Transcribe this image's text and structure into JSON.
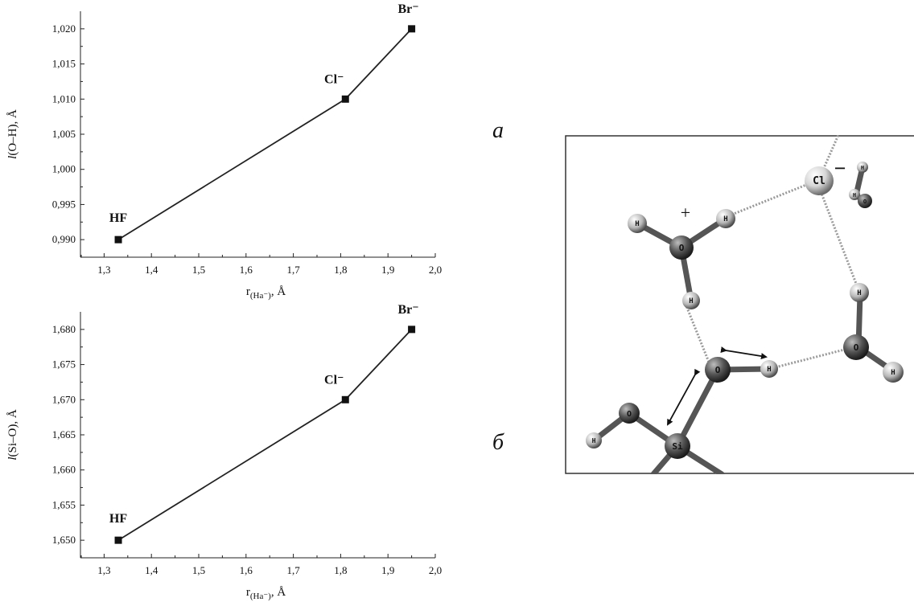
{
  "panel_labels": {
    "a": "а",
    "b": "б"
  },
  "chart_data": [
    {
      "type": "line",
      "x": [
        1.33,
        1.81,
        1.95
      ],
      "series": [
        {
          "values": [
            0.99,
            1.01,
            1.02
          ]
        }
      ],
      "point_labels": [
        "HF",
        "Cl⁻",
        "Br⁻"
      ],
      "ylabel_italic": "l",
      "ylabel_rest": "(O–H), Å",
      "xlabel_main": "r",
      "xlabel_sub": "(Ha⁻)",
      "xlabel_unit": ", Å",
      "xlim": [
        1.25,
        2.0
      ],
      "ylim": [
        0.9875,
        1.0225
      ],
      "xticks": [
        1.3,
        1.4,
        1.5,
        1.6,
        1.7,
        1.8,
        1.9,
        2.0
      ],
      "xtick_labels": [
        "1,3",
        "1,4",
        "1,5",
        "1,6",
        "1,7",
        "1,8",
        "1,9",
        "2,0"
      ],
      "yticks": [
        0.99,
        0.995,
        1.0,
        1.005,
        1.01,
        1.015,
        1.02
      ],
      "ytick_labels": [
        "0,990",
        "0,995",
        "1,000",
        "1,005",
        "1,010",
        "1,015",
        "1,020"
      ],
      "grid": false,
      "marker": "square"
    },
    {
      "type": "line",
      "x": [
        1.33,
        1.81,
        1.95
      ],
      "series": [
        {
          "values": [
            1.65,
            1.67,
            1.68
          ]
        }
      ],
      "point_labels": [
        "HF",
        "Cl⁻",
        "Br⁻"
      ],
      "ylabel_italic": "l",
      "ylabel_rest": "(Si–O), Å",
      "xlabel_main": "r",
      "xlabel_sub": "(Ha⁻)",
      "xlabel_unit": ", Å",
      "xlim": [
        1.25,
        2.0
      ],
      "ylim": [
        1.6475,
        1.6825
      ],
      "xticks": [
        1.3,
        1.4,
        1.5,
        1.6,
        1.7,
        1.8,
        1.9,
        2.0
      ],
      "xtick_labels": [
        "1,3",
        "1,4",
        "1,5",
        "1,6",
        "1,7",
        "1,8",
        "1,9",
        "2,0"
      ],
      "yticks": [
        1.65,
        1.655,
        1.66,
        1.665,
        1.67,
        1.675,
        1.68
      ],
      "ytick_labels": [
        "1,650",
        "1,655",
        "1,660",
        "1,665",
        "1,670",
        "1,675",
        "1,680"
      ],
      "grid": false,
      "marker": "square"
    }
  ],
  "molecule": {
    "atoms": [
      "H",
      "O",
      "H",
      "H",
      "Cl",
      "H",
      "H",
      "O",
      "H",
      "O",
      "H",
      "H",
      "O",
      "H",
      "Si"
    ],
    "charges": {
      "plus": "+",
      "minus": "−"
    }
  }
}
